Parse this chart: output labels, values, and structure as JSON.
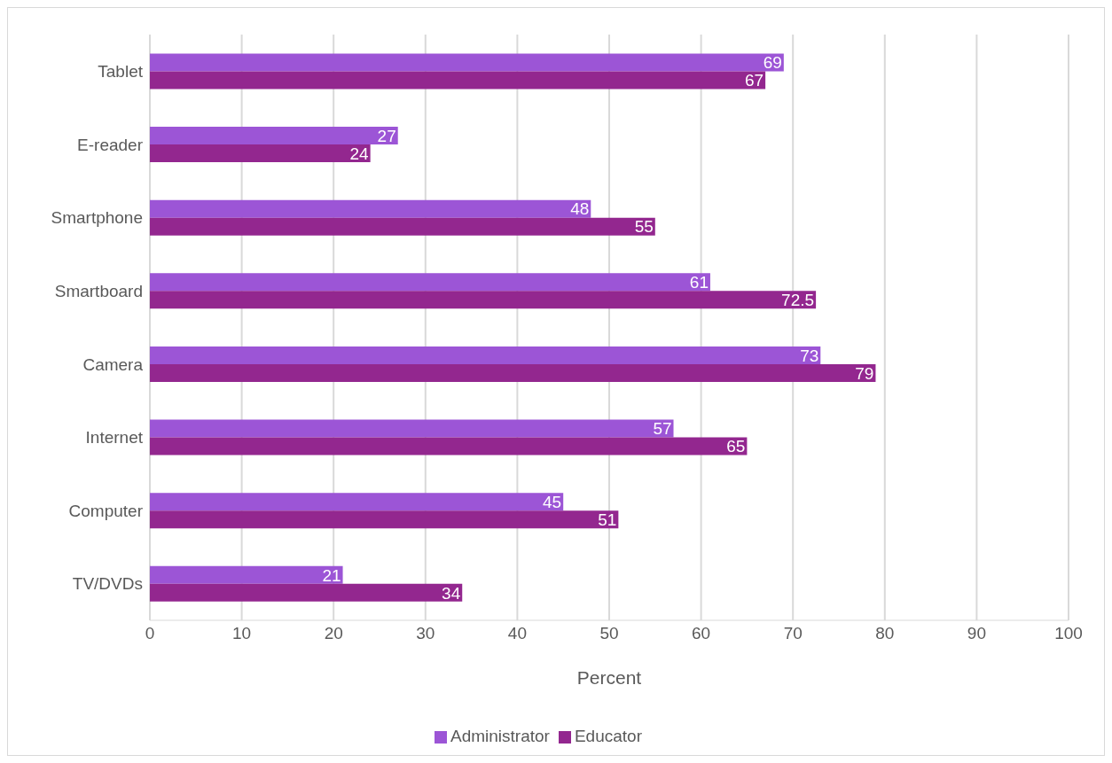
{
  "chart_data": {
    "type": "bar",
    "orientation": "horizontal",
    "xlabel": "Percent",
    "categories": [
      "Tablet",
      "E-reader",
      "Smartphone",
      "Smartboard",
      "Camera",
      "Internet",
      "Computer",
      "TV/DVDs"
    ],
    "series": [
      {
        "name": "Administrator",
        "color": "#9c55d6",
        "values": [
          69,
          27,
          48,
          61,
          73,
          57,
          45,
          21
        ]
      },
      {
        "name": "Educator",
        "color": "#93278f",
        "values": [
          67,
          24,
          55,
          72.5,
          79,
          65,
          51,
          34
        ]
      }
    ],
    "xlim": [
      0,
      100
    ],
    "xticks": [
      0,
      10,
      20,
      30,
      40,
      50,
      60,
      70,
      80,
      90,
      100
    ],
    "grid": "x",
    "legend": "bottom",
    "data_labels": true
  }
}
